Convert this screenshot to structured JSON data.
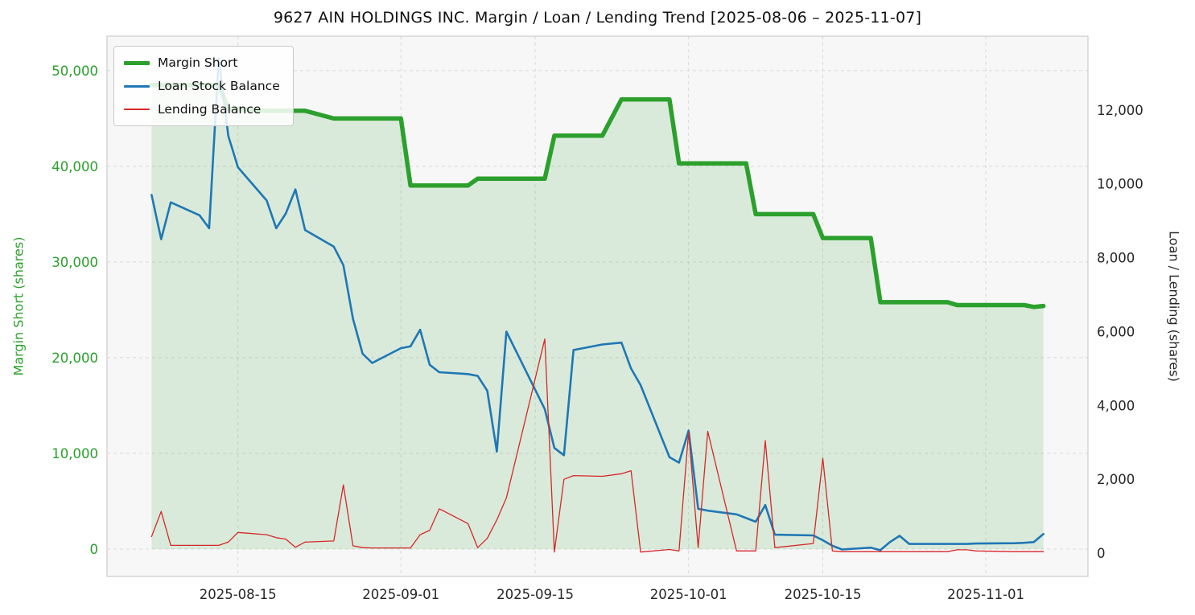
{
  "title": "9627 AIN HOLDINGS INC. Margin / Loan / Lending Trend [2025-08-06 – 2025-11-07]",
  "axes": {
    "left_label": "Margin Short (shares)",
    "right_label": "Loan / Lending (shares)",
    "left_ticks": [
      0,
      10000,
      20000,
      30000,
      40000,
      50000
    ],
    "right_ticks": [
      0,
      2000,
      4000,
      6000,
      8000,
      10000,
      12000
    ],
    "x_ticks": [
      "2025-08-15",
      "2025-09-01",
      "2025-09-15",
      "2025-10-01",
      "2025-10-15",
      "2025-11-01"
    ],
    "ylim_left": [
      -2860,
      53600
    ],
    "ylim_right": [
      -630,
      14000
    ],
    "grid": "dashed"
  },
  "legend": [
    {
      "label": "Margin Short",
      "color": "#2ca02c",
      "line_width": 5
    },
    {
      "label": "Loan Stock Balance",
      "color": "#1f77b4",
      "line_width": 3
    },
    {
      "label": "Lending Balance",
      "color": "#d62728",
      "line_width": 1.4
    }
  ],
  "chart_data": {
    "type": "line",
    "title": "9627 AIN HOLDINGS INC. Margin / Loan / Lending Trend [2025-08-06 – 2025-11-07]",
    "xlabel": "",
    "ylabel_left": "Margin Short (shares)",
    "ylabel_right": "Loan / Lending (shares)",
    "legend_position": "upper-left",
    "x": [
      "2025-08-06",
      "2025-08-07",
      "2025-08-08",
      "2025-08-11",
      "2025-08-12",
      "2025-08-13",
      "2025-08-14",
      "2025-08-15",
      "2025-08-18",
      "2025-08-19",
      "2025-08-20",
      "2025-08-21",
      "2025-08-22",
      "2025-08-25",
      "2025-08-26",
      "2025-08-27",
      "2025-08-28",
      "2025-08-29",
      "2025-09-01",
      "2025-09-02",
      "2025-09-03",
      "2025-09-04",
      "2025-09-05",
      "2025-09-08",
      "2025-09-09",
      "2025-09-10",
      "2025-09-11",
      "2025-09-12",
      "2025-09-16",
      "2025-09-17",
      "2025-09-18",
      "2025-09-19",
      "2025-09-22",
      "2025-09-24",
      "2025-09-25",
      "2025-09-26",
      "2025-09-29",
      "2025-09-30",
      "2025-10-01",
      "2025-10-02",
      "2025-10-03",
      "2025-10-06",
      "2025-10-07",
      "2025-10-08",
      "2025-10-09",
      "2025-10-10",
      "2025-10-14",
      "2025-10-15",
      "2025-10-16",
      "2025-10-17",
      "2025-10-20",
      "2025-10-21",
      "2025-10-22",
      "2025-10-23",
      "2025-10-24",
      "2025-10-27",
      "2025-10-28",
      "2025-10-29",
      "2025-10-30",
      "2025-10-31",
      "2025-11-04",
      "2025-11-05",
      "2025-11-06",
      "2025-11-07"
    ],
    "series": [
      {
        "id": "margin-short",
        "name": "Margin Short",
        "axis": "left",
        "color": "#2ca02c",
        "line_width": 5.5,
        "fill_to_zero": true,
        "fill_color": "rgba(44,160,44,0.15)",
        "values": [
          48500,
          48500,
          48500,
          48500,
          48500,
          48500,
          46000,
          46000,
          45800,
          45800,
          45800,
          45800,
          45800,
          45000,
          45000,
          45000,
          45000,
          45000,
          45000,
          38000,
          38000,
          38000,
          38000,
          38000,
          38700,
          38700,
          38700,
          38700,
          38700,
          43200,
          43200,
          43200,
          43200,
          47000,
          47000,
          47000,
          47000,
          40300,
          40300,
          40300,
          40300,
          40300,
          40300,
          35000,
          35000,
          35000,
          35000,
          32500,
          32500,
          32500,
          32500,
          25800,
          25800,
          25800,
          25800,
          25800,
          25800,
          25500,
          25500,
          25500,
          25500,
          25500,
          25300,
          25400
        ]
      },
      {
        "id": "loan-stock-balance",
        "name": "Loan Stock Balance",
        "axis": "right",
        "color": "#1f77b4",
        "line_width": 2.6,
        "fill_to_zero": false,
        "values": [
          9700,
          8500,
          9500,
          9150,
          8800,
          13400,
          11300,
          10450,
          9550,
          8800,
          9200,
          9850,
          8750,
          8300,
          7800,
          6350,
          5400,
          5150,
          5550,
          5600,
          6050,
          5100,
          4900,
          4850,
          4800,
          4400,
          2750,
          6000,
          3900,
          2850,
          2650,
          5500,
          5650,
          5700,
          5000,
          4550,
          2600,
          2450,
          3320,
          1200,
          1150,
          1050,
          950,
          850,
          1300,
          500,
          480,
          350,
          200,
          100,
          150,
          80,
          300,
          470,
          250,
          250,
          250,
          250,
          250,
          260,
          270,
          280,
          300,
          520
        ]
      },
      {
        "id": "lending-balance",
        "name": "Lending Balance",
        "axis": "right",
        "color": "#d62728",
        "line_width": 1.3,
        "fill_to_zero": false,
        "values": [
          450,
          1130,
          210,
          210,
          210,
          210,
          300,
          560,
          500,
          420,
          380,
          160,
          300,
          330,
          1850,
          200,
          150,
          140,
          140,
          140,
          500,
          620,
          1200,
          800,
          150,
          400,
          900,
          1500,
          5800,
          30,
          2000,
          2100,
          2080,
          2150,
          2230,
          30,
          100,
          60,
          3280,
          150,
          3300,
          60,
          60,
          60,
          3050,
          150,
          260,
          2570,
          60,
          40,
          40,
          40,
          40,
          40,
          40,
          40,
          40,
          90,
          90,
          60,
          40,
          40,
          40,
          40
        ]
      }
    ]
  }
}
